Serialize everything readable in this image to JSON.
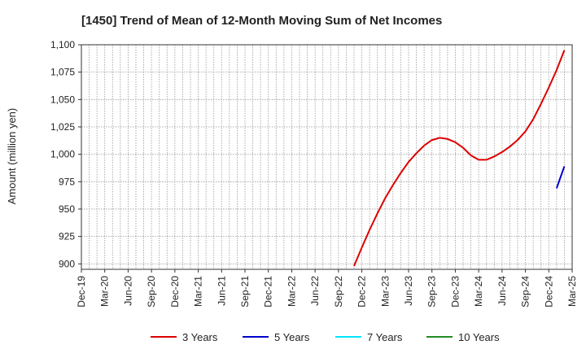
{
  "chart_data": {
    "type": "line",
    "title": "[1450]  Trend of Mean of 12-Month Moving Sum of Net Incomes",
    "xlabel": "",
    "ylabel": "Amount (million yen)",
    "ylim": [
      895,
      1100
    ],
    "yticks": [
      900,
      925,
      950,
      975,
      1000,
      1025,
      1050,
      1075,
      1100
    ],
    "ytick_labels": [
      "900",
      "925",
      "950",
      "975",
      "1,000",
      "1,025",
      "1,050",
      "1,075",
      "1,100"
    ],
    "x_range": [
      "2019-12",
      "2025-03"
    ],
    "xtick_labels": [
      "Dec-19",
      "Mar-20",
      "Jun-20",
      "Sep-20",
      "Dec-20",
      "Mar-21",
      "Jun-21",
      "Sep-21",
      "Dec-21",
      "Mar-22",
      "Jun-22",
      "Sep-22",
      "Dec-22",
      "Mar-23",
      "Jun-23",
      "Sep-23",
      "Dec-23",
      "Mar-24",
      "Jun-24",
      "Sep-24",
      "Dec-24",
      "Mar-25"
    ],
    "grid": true,
    "legend_position": "bottom",
    "series": [
      {
        "name": "3 Years",
        "color": "#dd0000",
        "points": [
          [
            "2022-11",
            898
          ],
          [
            "2022-12",
            915
          ],
          [
            "2023-01",
            931
          ],
          [
            "2023-02",
            946
          ],
          [
            "2023-03",
            960
          ],
          [
            "2023-04",
            972
          ],
          [
            "2023-05",
            983
          ],
          [
            "2023-06",
            993
          ],
          [
            "2023-07",
            1001
          ],
          [
            "2023-08",
            1008
          ],
          [
            "2023-09",
            1013
          ],
          [
            "2023-10",
            1015
          ],
          [
            "2023-11",
            1014
          ],
          [
            "2023-12",
            1011
          ],
          [
            "2024-01",
            1006
          ],
          [
            "2024-02",
            999
          ],
          [
            "2024-03",
            995
          ],
          [
            "2024-04",
            995
          ],
          [
            "2024-05",
            998
          ],
          [
            "2024-06",
            1002
          ],
          [
            "2024-07",
            1007
          ],
          [
            "2024-08",
            1013
          ],
          [
            "2024-09",
            1021
          ],
          [
            "2024-10",
            1032
          ],
          [
            "2024-11",
            1046
          ],
          [
            "2024-12",
            1061
          ],
          [
            "2025-01",
            1077
          ],
          [
            "2025-02",
            1095
          ]
        ]
      },
      {
        "name": "5 Years",
        "color": "#0000cc",
        "points": [
          [
            "2025-01",
            969
          ],
          [
            "2025-02",
            989
          ]
        ]
      },
      {
        "name": "7 Years",
        "color": "#00e5ff",
        "points": []
      },
      {
        "name": "10 Years",
        "color": "#228b22",
        "points": []
      }
    ]
  }
}
